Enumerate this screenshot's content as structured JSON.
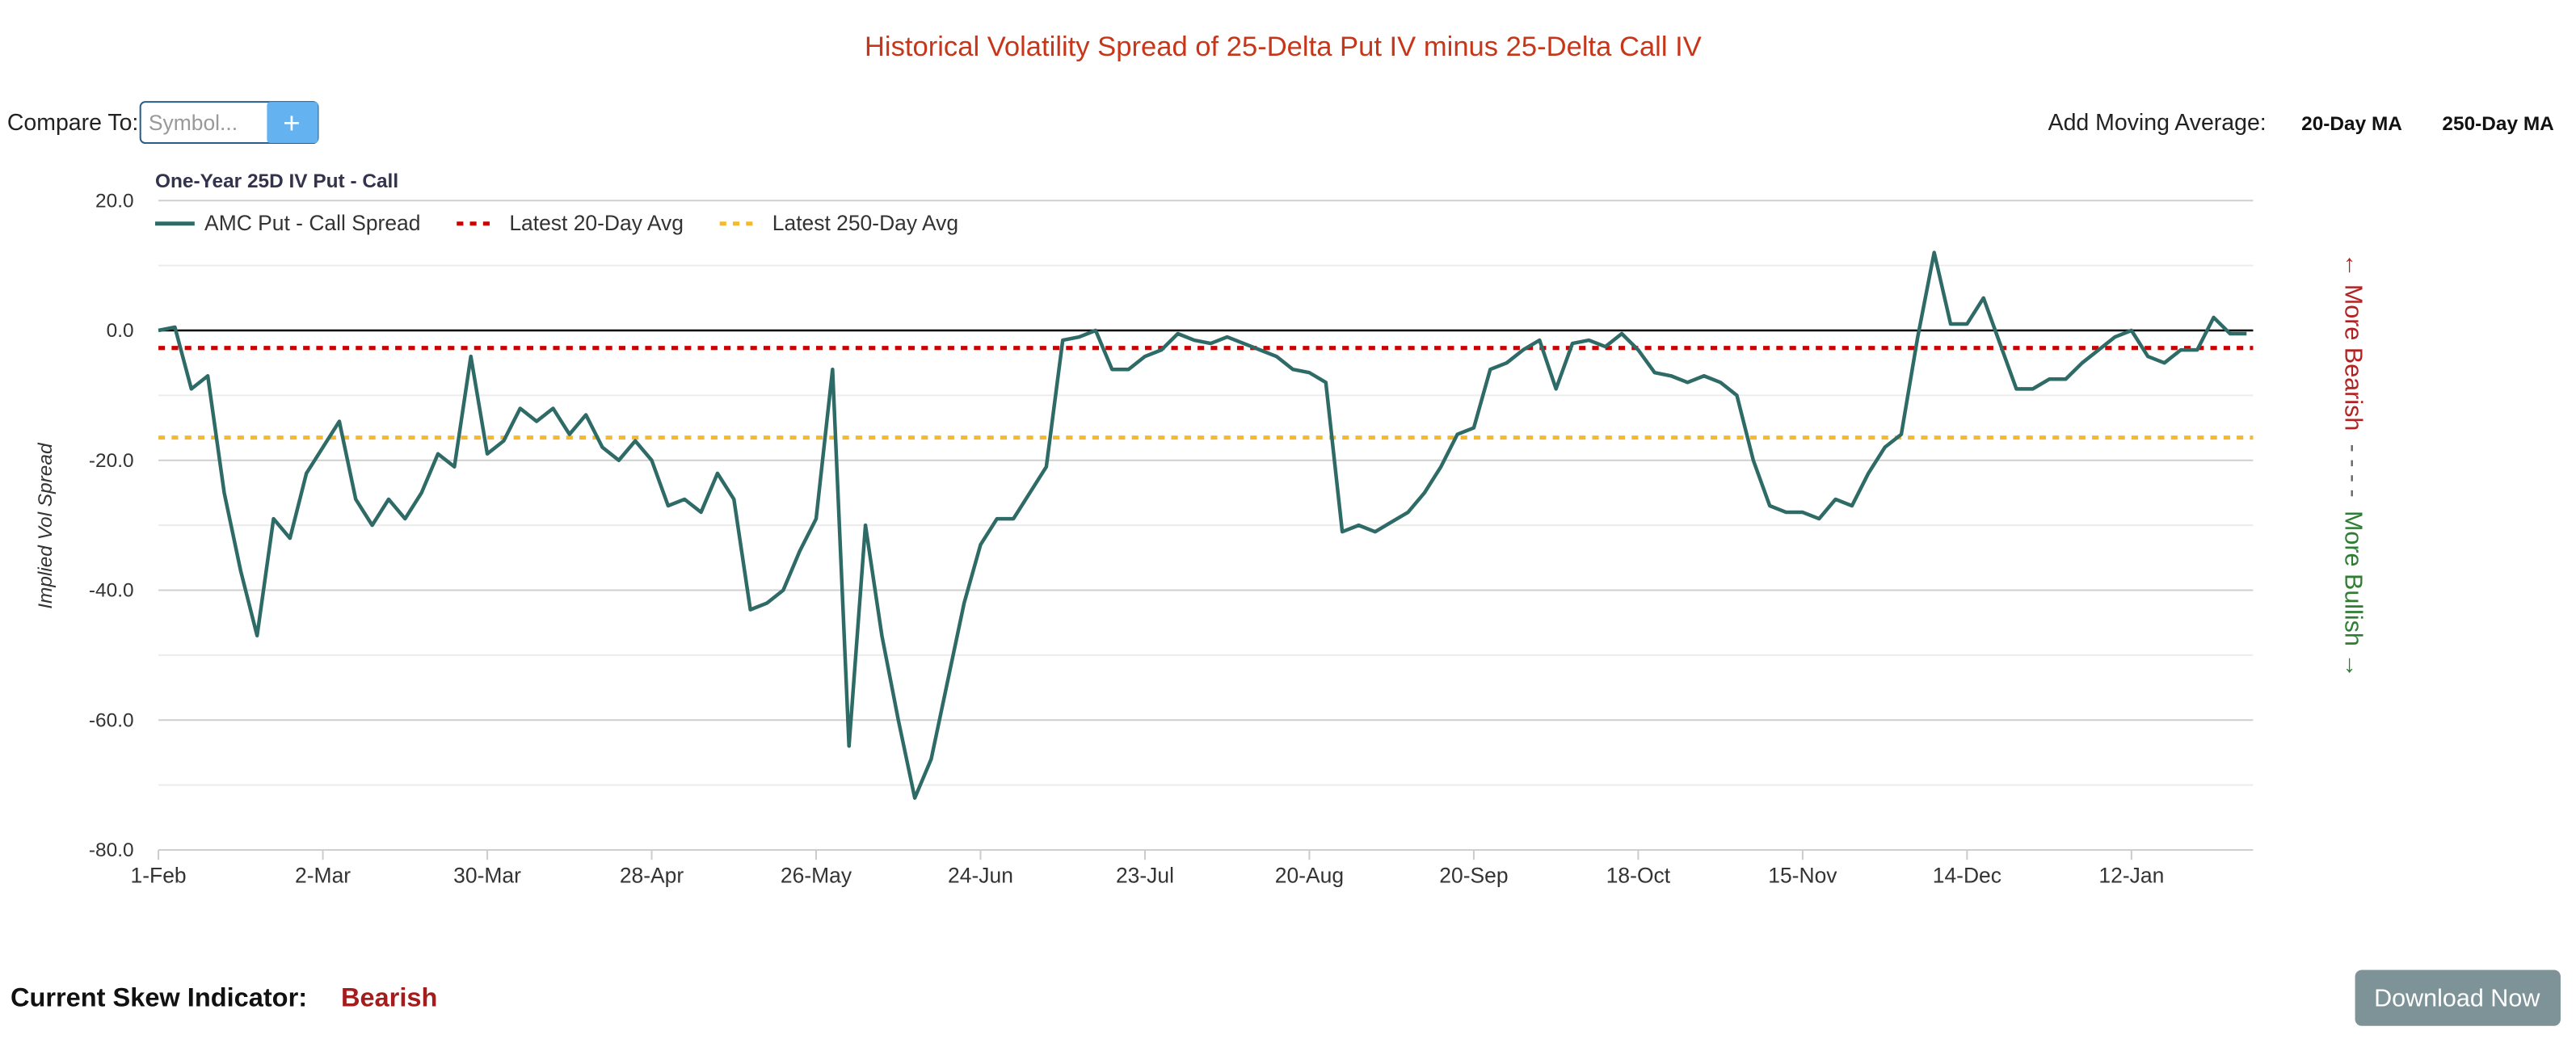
{
  "header": {
    "title": "Historical Volatility Spread of 25-Delta Put IV minus 25-Delta Call IV"
  },
  "controls": {
    "compare_label": "Compare To:",
    "symbol_placeholder": "Symbol...",
    "add_button": "+",
    "ma_label": "Add Moving Average:",
    "ma_buttons": [
      "20-Day MA",
      "250-Day MA"
    ]
  },
  "chart_data": {
    "type": "line",
    "title": "One-Year 25D IV Put - Call",
    "ylabel": "Implied Vol Spread",
    "categories": [
      "1-Feb",
      null,
      null,
      null,
      null,
      null,
      null,
      null,
      null,
      null,
      "2-Mar",
      null,
      null,
      null,
      null,
      null,
      null,
      null,
      null,
      null,
      "30-Mar",
      null,
      null,
      null,
      null,
      null,
      null,
      null,
      null,
      null,
      "28-Apr",
      null,
      null,
      null,
      null,
      null,
      null,
      null,
      null,
      null,
      "26-May",
      null,
      null,
      null,
      null,
      null,
      null,
      null,
      null,
      null,
      "24-Jun",
      null,
      null,
      null,
      null,
      null,
      null,
      null,
      null,
      null,
      "23-Jul",
      null,
      null,
      null,
      null,
      null,
      null,
      null,
      null,
      null,
      "20-Aug",
      null,
      null,
      null,
      null,
      null,
      null,
      null,
      null,
      null,
      "20-Sep",
      null,
      null,
      null,
      null,
      null,
      null,
      null,
      null,
      null,
      "18-Oct",
      null,
      null,
      null,
      null,
      null,
      null,
      null,
      null,
      null,
      "15-Nov",
      null,
      null,
      null,
      null,
      null,
      null,
      null,
      null,
      null,
      "14-Dec",
      null,
      null,
      null,
      null,
      null,
      null,
      null,
      null,
      null,
      "12-Jan",
      null,
      null,
      null,
      null,
      null,
      null,
      null
    ],
    "series": [
      {
        "name": "AMC Put - Call Spread",
        "color": "#2e6b66",
        "values": [
          0,
          0.5,
          -9,
          -7,
          -25,
          -37,
          -47,
          -29,
          -32,
          -22,
          -18,
          -14,
          -26,
          -30,
          -26,
          -29,
          -25,
          -19,
          -21,
          -4,
          -19,
          -17,
          -12,
          -14,
          -12,
          -16,
          -13,
          -18,
          -20,
          -17,
          -20,
          -27,
          -26,
          -28,
          -22,
          -26,
          -43,
          -42,
          -40,
          -34,
          -29,
          -6,
          -64,
          -30,
          -47,
          -60,
          -72,
          -66,
          -54,
          -42,
          -33,
          -29,
          -29,
          -25,
          -21,
          -1.5,
          -1,
          0,
          -6,
          -6,
          -4,
          -3,
          -0.5,
          -1.5,
          -2,
          -1,
          -2,
          -3,
          -4,
          -6,
          -6.5,
          -8,
          -31,
          -30,
          -31,
          -29.5,
          -28,
          -25,
          -21,
          -16,
          -15,
          -6,
          -5,
          -3,
          -1.5,
          -9,
          -2,
          -1.5,
          -2.5,
          -0.5,
          -3,
          -6.5,
          -7,
          -8,
          -7,
          -8,
          -10,
          -20,
          -27,
          -28,
          -28,
          -29,
          -26,
          -27,
          -22,
          -18,
          -16,
          -1,
          12,
          1,
          1,
          5,
          -2,
          -9,
          -9,
          -7.5,
          -7.5,
          -5,
          -3,
          -1,
          0,
          -4,
          -5,
          -3,
          -3,
          2,
          -0.5,
          -0.5
        ]
      }
    ],
    "reference_lines": [
      {
        "name": "Latest 20-Day Avg",
        "color": "#cc0000",
        "value": -2.7
      },
      {
        "name": "Latest 250-Day Avg",
        "color": "#f5b82e",
        "value": -16.5
      }
    ],
    "ylim": [
      -80,
      20
    ],
    "yticks": [
      {
        "value": -80,
        "label": "-80.0"
      },
      {
        "value": -60,
        "label": "-60.0"
      },
      {
        "value": -40,
        "label": "-40.0"
      },
      {
        "value": -20,
        "label": "-20.0"
      },
      {
        "value": 0,
        "label": "0.0"
      },
      {
        "value": 20,
        "label": "20.0"
      }
    ],
    "minor_yticks": [
      -70,
      -50,
      -30,
      -10,
      10
    ],
    "grid": true,
    "legend": "top-left",
    "side_note": {
      "bearish": "← More Bearish",
      "dashes": "- - - -",
      "bullish": "More Bullish →"
    }
  },
  "footer": {
    "indicator_label": "Current Skew Indicator:",
    "indicator_value": "Bearish",
    "download": "Download Now"
  }
}
